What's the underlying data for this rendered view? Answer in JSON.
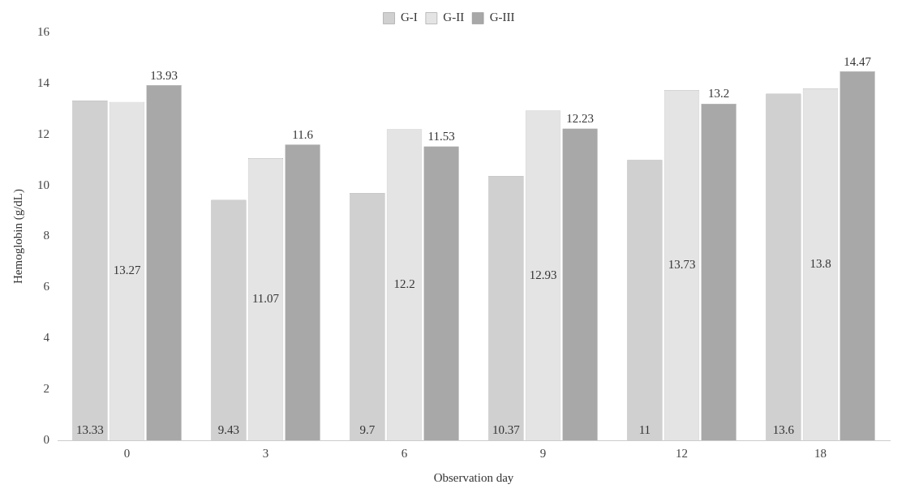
{
  "chart_data": {
    "type": "bar",
    "xlabel": "Observation day",
    "ylabel": "Hemoglobin (g/dL)",
    "categories": [
      "0",
      "3",
      "6",
      "9",
      "12",
      "18"
    ],
    "series": [
      {
        "name": "G-I",
        "color": "#d0d0d0",
        "values": [
          13.33,
          9.43,
          9.7,
          10.37,
          11,
          13.6
        ]
      },
      {
        "name": "G-II",
        "color": "#e4e4e4",
        "values": [
          13.27,
          11.07,
          12.2,
          12.93,
          13.73,
          13.8
        ]
      },
      {
        "name": "G-III",
        "color": "#a8a8a8",
        "values": [
          13.93,
          11.6,
          11.53,
          12.23,
          13.2,
          14.47
        ]
      }
    ],
    "ylim": [
      0,
      16
    ],
    "yticks": [
      0,
      2,
      4,
      6,
      8,
      10,
      12,
      14,
      16
    ],
    "grid": false,
    "legend": "top",
    "data_labels": true
  }
}
